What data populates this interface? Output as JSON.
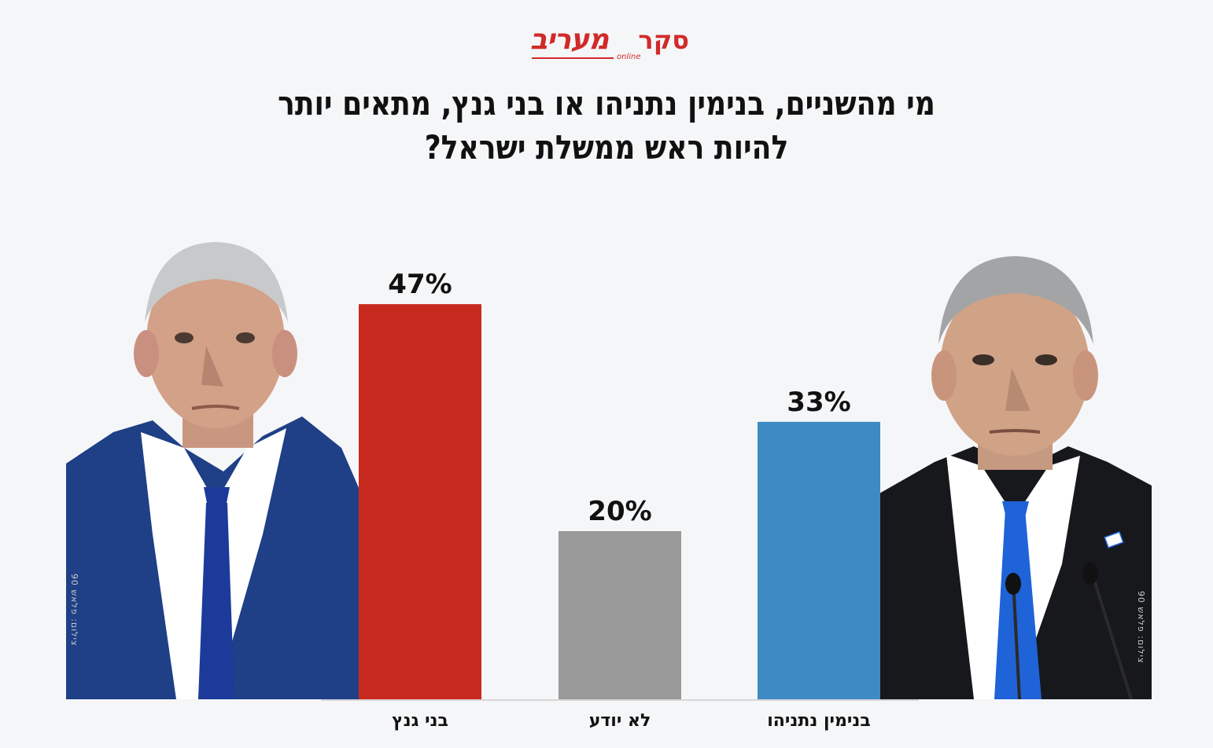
{
  "header": {
    "survey_word": "סקר",
    "brand_name": "מעריב",
    "brand_sub": "online"
  },
  "question": {
    "line1": "מי מהשניים, בנימין נתניהו או בני גנץ, מתאים יותר",
    "line2": "להיות ראש ממשלת ישראל?"
  },
  "photo_credits": {
    "left": "צילום: פלאש 90",
    "right": "צילום: פלאש 90"
  },
  "colors": {
    "gantz": "#c8291f",
    "dont_know": "#999999",
    "netanyahu": "#3e8ac4"
  },
  "chart_data": {
    "type": "bar",
    "categories": [
      "בני גנץ",
      "לא יודע",
      "בנימין נתניהו"
    ],
    "values": [
      47,
      20,
      33
    ],
    "value_labels": [
      "47%",
      "20%",
      "33%"
    ],
    "ylim": [
      0,
      50
    ],
    "grid": false,
    "legend": "none"
  }
}
